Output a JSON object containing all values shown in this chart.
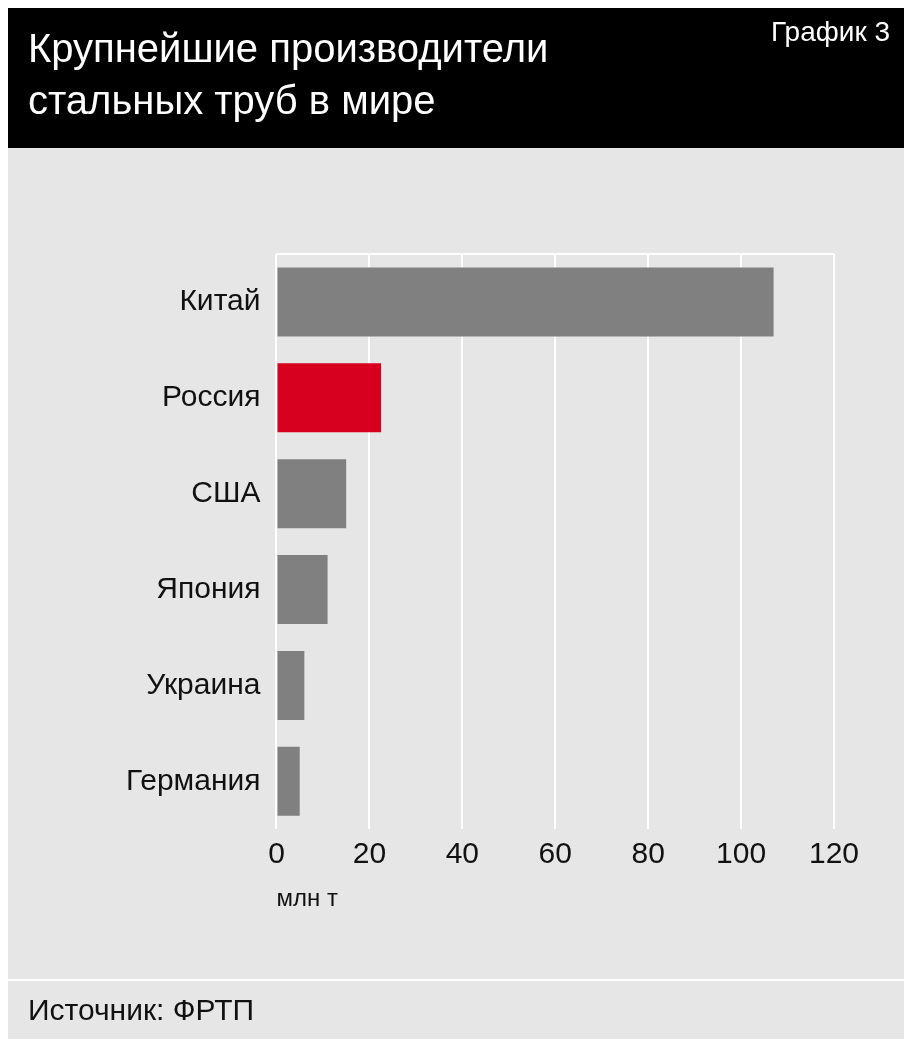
{
  "chart_data": {
    "type": "bar",
    "orientation": "horizontal",
    "title": "Крупнейшие производители стальных труб в мире",
    "xlabel": "млн т",
    "categories": [
      "Китай",
      "Россия",
      "США",
      "Япония",
      "Украина",
      "Германия"
    ],
    "values": [
      107,
      22.5,
      15,
      11,
      6,
      5
    ],
    "colors": [
      "#808080",
      "#d7001e",
      "#808080",
      "#808080",
      "#808080",
      "#808080"
    ],
    "xlim": [
      0,
      120
    ],
    "xticks": [
      0,
      20,
      40,
      60,
      80,
      100,
      120
    ],
    "grid": "x",
    "legend": false,
    "annotations": [
      "График 3",
      "Источник: ФРТП"
    ]
  }
}
